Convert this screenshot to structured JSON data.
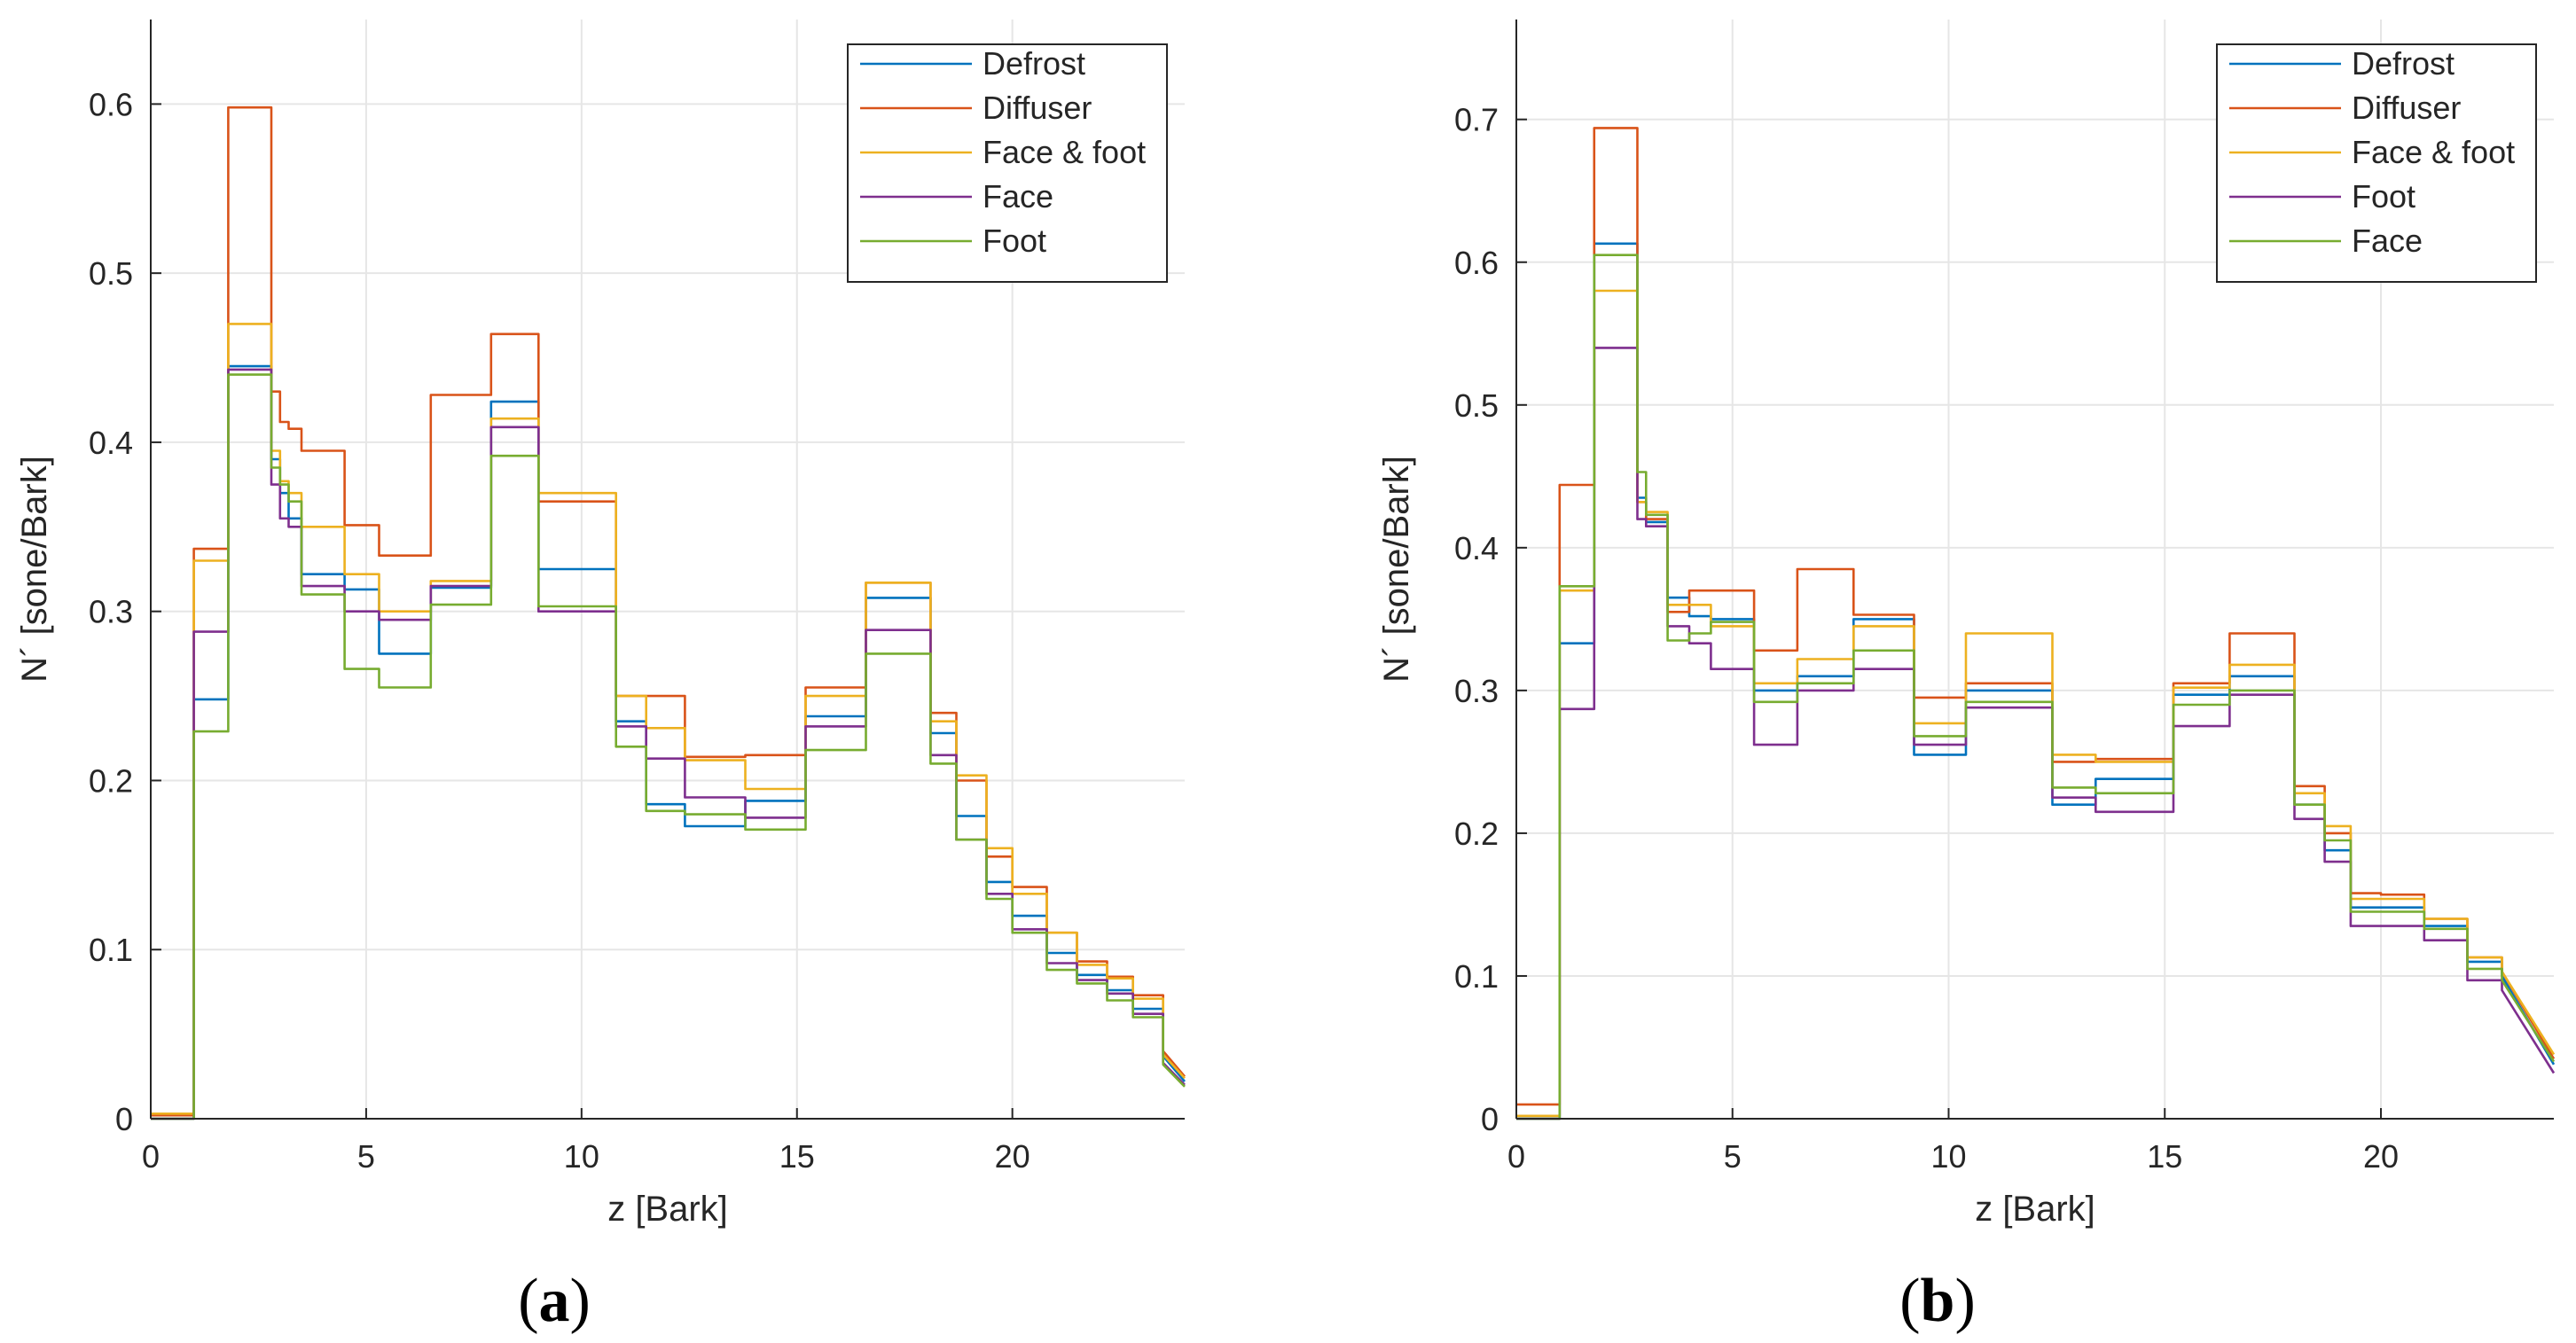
{
  "figure": {
    "panels_order": [
      "a",
      "b"
    ]
  },
  "chart_data": [
    {
      "panel": "a",
      "caption_open": "(",
      "caption_letter": "a",
      "caption_close": ")",
      "type": "line",
      "step": true,
      "title": "",
      "xlabel": "z [Bark]",
      "ylabel": "N´ [sone/Bark]",
      "xlim": [
        0,
        24
      ],
      "ylim": [
        0,
        0.65
      ],
      "xticks": [
        0,
        5,
        10,
        15,
        20
      ],
      "xtick_labels": [
        "0",
        "5",
        "10",
        "15",
        "20"
      ],
      "yticks": [
        0,
        0.1,
        0.2,
        0.3,
        0.4,
        0.5,
        0.6
      ],
      "ytick_labels": [
        "0",
        "0.1",
        "0.2",
        "0.3",
        "0.4",
        "0.5",
        "0.6"
      ],
      "grid": true,
      "legend_position": "top-right",
      "x": [
        0.0,
        0.8,
        1.0,
        1.8,
        2.8,
        3.0,
        3.2,
        3.5,
        4.5,
        5.3,
        6.5,
        7.9,
        9.0,
        10.8,
        11.5,
        12.4,
        13.8,
        15.2,
        16.6,
        18.1,
        18.7,
        19.4,
        20.0,
        20.8,
        21.5,
        22.2,
        22.8,
        23.5,
        24.0
      ],
      "series": [
        {
          "name": "Defrost",
          "color": "#0072BD",
          "values": [
            0.0,
            0.0,
            0.248,
            0.445,
            0.39,
            0.37,
            0.355,
            0.322,
            0.313,
            0.275,
            0.314,
            0.424,
            0.325,
            0.235,
            0.186,
            0.173,
            0.188,
            0.238,
            0.308,
            0.228,
            0.179,
            0.14,
            0.12,
            0.098,
            0.085,
            0.076,
            0.065,
            0.037,
            0.022
          ]
        },
        {
          "name": "Diffuser",
          "color": "#D95319",
          "values": [
            0.002,
            0.002,
            0.337,
            0.598,
            0.43,
            0.412,
            0.408,
            0.395,
            0.351,
            0.333,
            0.428,
            0.464,
            0.365,
            0.25,
            0.25,
            0.214,
            0.215,
            0.255,
            0.317,
            0.24,
            0.2,
            0.155,
            0.137,
            0.11,
            0.093,
            0.084,
            0.073,
            0.04,
            0.025
          ]
        },
        {
          "name": "Face & foot",
          "color": "#EDB120",
          "values": [
            0.003,
            0.003,
            0.33,
            0.47,
            0.395,
            0.377,
            0.37,
            0.35,
            0.322,
            0.3,
            0.318,
            0.414,
            0.37,
            0.25,
            0.231,
            0.212,
            0.195,
            0.25,
            0.317,
            0.235,
            0.203,
            0.16,
            0.133,
            0.11,
            0.091,
            0.083,
            0.071,
            0.038,
            0.024
          ]
        },
        {
          "name": "Face",
          "color": "#7E2F8E",
          "values": [
            0.0,
            0.0,
            0.288,
            0.443,
            0.375,
            0.355,
            0.35,
            0.315,
            0.3,
            0.295,
            0.315,
            0.409,
            0.3,
            0.232,
            0.213,
            0.19,
            0.178,
            0.232,
            0.289,
            0.215,
            0.165,
            0.133,
            0.112,
            0.092,
            0.082,
            0.074,
            0.062,
            0.033,
            0.02
          ]
        },
        {
          "name": "Foot",
          "color": "#77AC30",
          "values": [
            0.0,
            0.0,
            0.229,
            0.44,
            0.385,
            0.375,
            0.365,
            0.31,
            0.266,
            0.255,
            0.304,
            0.392,
            0.303,
            0.22,
            0.182,
            0.18,
            0.171,
            0.218,
            0.275,
            0.21,
            0.165,
            0.13,
            0.11,
            0.088,
            0.08,
            0.07,
            0.06,
            0.032,
            0.019
          ]
        }
      ]
    },
    {
      "panel": "b",
      "caption_open": "(",
      "caption_letter": "b",
      "caption_close": ")",
      "type": "line",
      "step": true,
      "title": "",
      "xlabel": "z [Bark]",
      "ylabel": "N´ [sone/Bark]",
      "xlim": [
        0,
        24
      ],
      "ylim": [
        0,
        0.77
      ],
      "xticks": [
        0,
        5,
        10,
        15,
        20
      ],
      "xtick_labels": [
        "0",
        "5",
        "10",
        "15",
        "20"
      ],
      "yticks": [
        0,
        0.1,
        0.2,
        0.3,
        0.4,
        0.5,
        0.6,
        0.7
      ],
      "ytick_labels": [
        "0",
        "0.1",
        "0.2",
        "0.3",
        "0.4",
        "0.5",
        "0.6",
        "0.7"
      ],
      "grid": true,
      "legend_position": "top-right",
      "x": [
        0.0,
        0.8,
        1.0,
        1.8,
        2.8,
        3.0,
        3.5,
        4.0,
        4.5,
        5.5,
        6.5,
        7.8,
        9.2,
        10.4,
        12.4,
        13.4,
        15.2,
        16.5,
        18.0,
        18.7,
        19.3,
        20.0,
        21.0,
        22.0,
        22.8,
        24.0
      ],
      "series": [
        {
          "name": "Defrost",
          "color": "#0072BD",
          "values": [
            0.0,
            0.0,
            0.333,
            0.613,
            0.435,
            0.418,
            0.365,
            0.352,
            0.35,
            0.3,
            0.31,
            0.35,
            0.255,
            0.3,
            0.22,
            0.238,
            0.297,
            0.31,
            0.22,
            0.188,
            0.148,
            0.148,
            0.135,
            0.11,
            0.1,
            0.038
          ]
        },
        {
          "name": "Diffuser",
          "color": "#D95319",
          "values": [
            0.01,
            0.01,
            0.444,
            0.694,
            0.432,
            0.42,
            0.355,
            0.37,
            0.37,
            0.328,
            0.385,
            0.353,
            0.295,
            0.305,
            0.25,
            0.252,
            0.305,
            0.34,
            0.233,
            0.2,
            0.158,
            0.157,
            0.14,
            0.113,
            0.103,
            0.042
          ]
        },
        {
          "name": "Face & foot",
          "color": "#EDB120",
          "values": [
            0.002,
            0.002,
            0.37,
            0.58,
            0.432,
            0.425,
            0.36,
            0.36,
            0.345,
            0.305,
            0.322,
            0.345,
            0.277,
            0.34,
            0.255,
            0.25,
            0.302,
            0.318,
            0.228,
            0.205,
            0.154,
            0.154,
            0.14,
            0.113,
            0.103,
            0.045
          ]
        },
        {
          "name": "Foot",
          "color": "#7E2F8E",
          "values": [
            0.0,
            0.0,
            0.287,
            0.54,
            0.42,
            0.415,
            0.345,
            0.333,
            0.315,
            0.262,
            0.3,
            0.315,
            0.262,
            0.288,
            0.225,
            0.215,
            0.275,
            0.297,
            0.21,
            0.18,
            0.135,
            0.135,
            0.125,
            0.097,
            0.09,
            0.032
          ]
        },
        {
          "name": "Face",
          "color": "#77AC30",
          "values": [
            0.0,
            0.0,
            0.373,
            0.605,
            0.453,
            0.423,
            0.335,
            0.34,
            0.348,
            0.292,
            0.305,
            0.328,
            0.268,
            0.292,
            0.232,
            0.228,
            0.29,
            0.3,
            0.22,
            0.195,
            0.145,
            0.145,
            0.133,
            0.105,
            0.097,
            0.04
          ]
        }
      ]
    }
  ]
}
